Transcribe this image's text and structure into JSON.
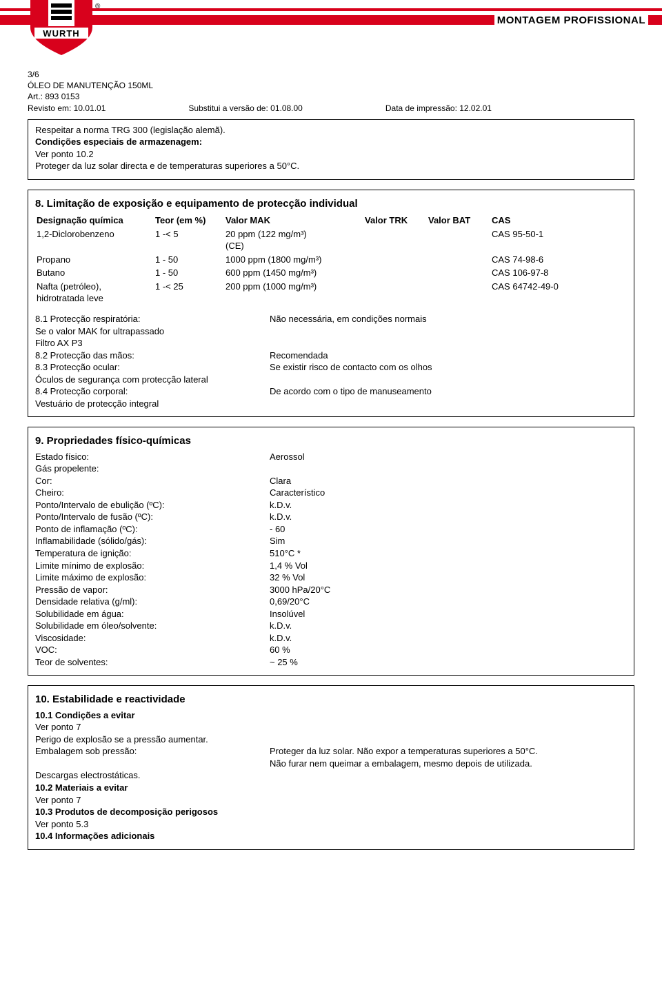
{
  "header": {
    "tagline": "MONTAGEM PROFISSIONAL",
    "brand": "WURTH",
    "reg": "®",
    "logo_colors": {
      "red": "#d8011c",
      "black": "#000000",
      "white": "#ffffff"
    }
  },
  "meta": {
    "page": "3/6",
    "title": "ÓLEO DE MANUTENÇÃO 150ML",
    "art": "Art.: 893 0153",
    "revisto": "Revisto em: 10.01.01",
    "substitui": "Substitui a versão de: 01.08.00",
    "impressao": "Data de impressão: 12.02.01"
  },
  "box1": {
    "l1": "Respeitar a norma TRG 300 (legislação alemã).",
    "l2": "Condições especiais de armazenagem:",
    "l3": "Ver ponto 10.2",
    "l4": "Proteger da luz solar directa e de temperaturas superiores a 50°C."
  },
  "sec8": {
    "title": "8.  Limitação de exposição e equipamento de protecção individual",
    "headers": {
      "designacao": "Designação química",
      "teor": "Teor (em %)",
      "mak": "Valor MAK",
      "trk": "Valor TRK",
      "bat": "Valor BAT",
      "cas": "CAS"
    },
    "rows": [
      {
        "d": "1,2-Diclorobenzeno",
        "t": "1 -< 5",
        "mak": "20 ppm (122 mg/m³)\n(CE)",
        "cas": "CAS 95-50-1"
      },
      {
        "d": "Propano",
        "t": "1 - 50",
        "mak": "1000 ppm (1800 mg/m³)",
        "cas": "CAS 74-98-6"
      },
      {
        "d": "Butano",
        "t": "1 - 50",
        "mak": "600 ppm (1450 mg/m³)",
        "cas": "CAS 106-97-8"
      },
      {
        "d": "Nafta (petróleo),\nhidrotratada leve",
        "t": "1 -< 25",
        "mak": "200 ppm (1000 mg/m³)",
        "cas": "CAS 64742-49-0"
      }
    ],
    "p81_l": "8.1 Protecção respiratória:",
    "p81_v": "Não necessária, em condições normais",
    "p81_extra1": "Se o valor MAK for ultrapassado",
    "p81_extra2": "Filtro AX P3",
    "p82_l": "8.2 Protecção das mãos:",
    "p82_v": "Recomendada",
    "p83_l": "8.3 Protecção ocular:",
    "p83_v": "Se existir risco de contacto com os olhos",
    "p83_extra": "Óculos de segurança com protecção lateral",
    "p84_l": "8.4 Protecção corporal:",
    "p84_v": "De acordo com o tipo de manuseamento",
    "p84_extra": "Vestuário de protecção integral"
  },
  "sec9": {
    "title": "9.  Propriedades físico-químicas",
    "rows": [
      {
        "l": "Estado físico:",
        "v": "Aerossol"
      },
      {
        "l": "Gás propelente:",
        "v": ""
      },
      {
        "l": "Cor:",
        "v": "Clara"
      },
      {
        "l": "Cheiro:",
        "v": "Característico"
      },
      {
        "l": "Ponto/Intervalo de ebulição (ºC):",
        "v": "k.D.v."
      },
      {
        "l": "Ponto/Intervalo de fusão (ºC):",
        "v": "k.D.v."
      },
      {
        "l": "Ponto de inflamação (ºC):",
        "v": "- 60"
      },
      {
        "l": "Inflamabilidade (sólido/gás):",
        "v": "Sim"
      },
      {
        "l": "Temperatura de ignição:",
        "v": "510°C *"
      },
      {
        "l": "Limite mínimo de explosão:",
        "v": "1,4 % Vol"
      },
      {
        "l": "Limite máximo de explosão:",
        "v": "32 % Vol"
      },
      {
        "l": "Pressão de vapor:",
        "v": "3000 hPa/20°C"
      },
      {
        "l": "Densidade relativa (g/ml):",
        "v": "0,69/20°C"
      },
      {
        "l": "Solubilidade em água:",
        "v": "Insolúvel"
      },
      {
        "l": "Solubilidade em óleo/solvente:",
        "v": "k.D.v."
      },
      {
        "l": "Viscosidade:",
        "v": "k.D.v."
      },
      {
        "l": "VOC:",
        "v": "60 %"
      },
      {
        "l": "Teor de solventes:",
        "v": "~ 25 %"
      }
    ]
  },
  "sec10": {
    "title": "10. Estabilidade e reactividade",
    "s101": "10.1 Condições a evitar",
    "s101_l1": "Ver ponto 7",
    "s101_l2": "Perigo de explosão se a pressão aumentar.",
    "emb_l": "Embalagem sob pressão:",
    "emb_v1": "Proteger da luz solar. Não expor a temperaturas superiores a 50°C.",
    "emb_v2": "Não furar nem queimar a embalagem, mesmo depois de utilizada.",
    "desc": "Descargas electrostáticas.",
    "s102": "10.2 Materiais a evitar",
    "s102_l1": "Ver ponto 7",
    "s103": "10.3 Produtos de decomposição perigosos",
    "s103_l1": "Ver ponto 5.3",
    "s104": "10.4 Informações adicionais"
  }
}
